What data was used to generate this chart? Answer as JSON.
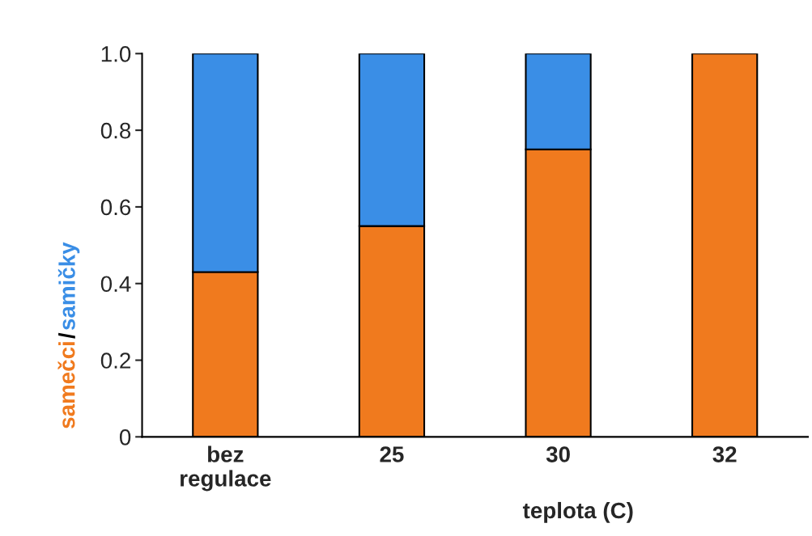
{
  "chart_data": {
    "type": "bar",
    "stacked": true,
    "xlabel": "teplota (C)",
    "ylabel": "/",
    "categories": [
      "bez\nregulace",
      "25",
      "30",
      "32"
    ],
    "series": [
      {
        "name": "samečci",
        "color": "#f07a1e",
        "values": [
          0.43,
          0.55,
          0.75,
          1.0
        ]
      },
      {
        "name": "samičky",
        "color": "#3a8ee6",
        "values": [
          0.57,
          0.45,
          0.25,
          null
        ]
      }
    ],
    "ylim": [
      0,
      1.0
    ],
    "yticks": [
      0,
      0.2,
      0.4,
      0.6,
      0.8,
      {
        "value": 1.0,
        "label": "1.0"
      }
    ],
    "grid": false,
    "legend": false
  }
}
